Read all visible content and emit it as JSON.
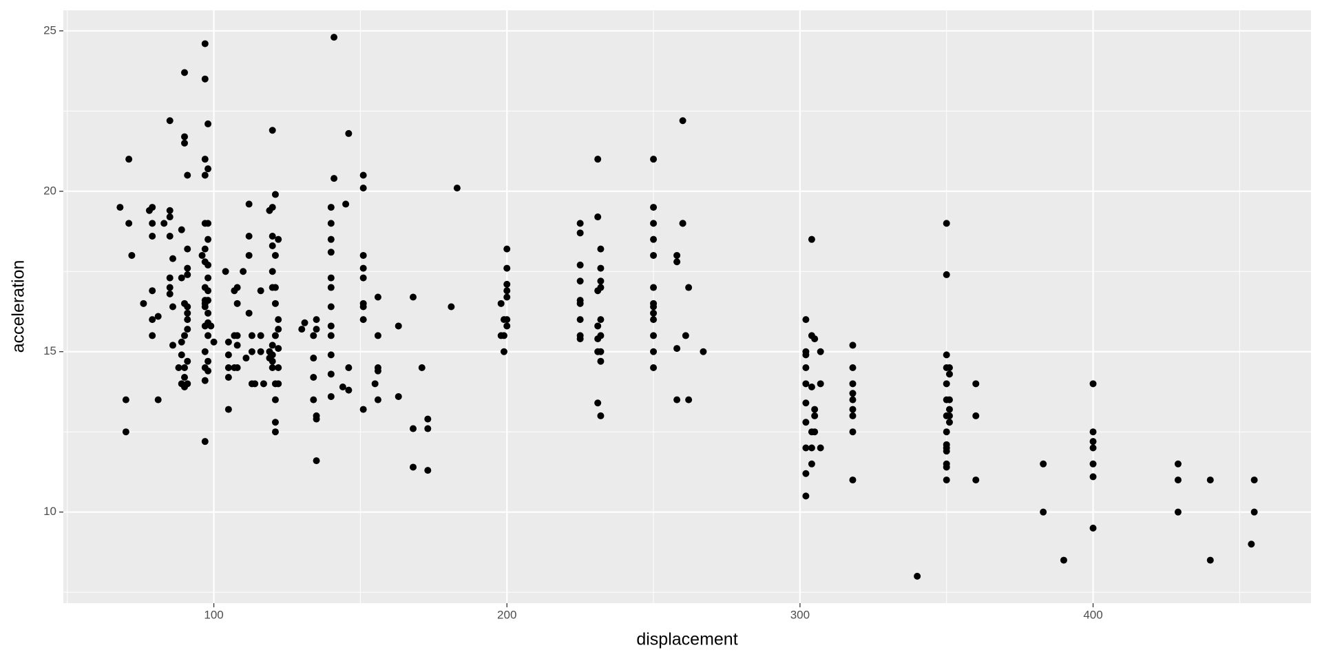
{
  "chart_data": {
    "type": "scatter",
    "x_label": "displacement",
    "y_label": "acceleration",
    "color": "#000000",
    "grid": true,
    "xlim": [
      48.65,
      474.35
    ],
    "ylim": [
      7.16,
      25.64
    ],
    "xticks": [
      100,
      200,
      300,
      400
    ],
    "yticks": [
      10,
      15,
      20,
      25
    ],
    "x": [
      68,
      70,
      70,
      71,
      71,
      72,
      76,
      78,
      79,
      79,
      79,
      79,
      79,
      79,
      81,
      81,
      83,
      85,
      85,
      85,
      85,
      85,
      85,
      85,
      86,
      86,
      86,
      88,
      89,
      89,
      89,
      89,
      89,
      90,
      90,
      90,
      90,
      90,
      90,
      90,
      90,
      91,
      91,
      91,
      91,
      91,
      91,
      91,
      91,
      91,
      91,
      96,
      97,
      97,
      97,
      97,
      97,
      97,
      97,
      97,
      97,
      97,
      97,
      97,
      97,
      97,
      97,
      97,
      98,
      98,
      98,
      98,
      98,
      98,
      98,
      98,
      98,
      98,
      98,
      98,
      98,
      99,
      100,
      104,
      105,
      105,
      105,
      105,
      105,
      107,
      107,
      107,
      108,
      108,
      108,
      108,
      108,
      110,
      111,
      112,
      112,
      112,
      112,
      113,
      113,
      113,
      114,
      116,
      116,
      116,
      117,
      119,
      119,
      119,
      120,
      120,
      120,
      120,
      120,
      120,
      120,
      120,
      120,
      120,
      121,
      121,
      121,
      121,
      121,
      121,
      121,
      121,
      121,
      122,
      122,
      122,
      122,
      122,
      122,
      130,
      131,
      134,
      134,
      134,
      134,
      135,
      135,
      135,
      135,
      135,
      140,
      140,
      140,
      140,
      140,
      140,
      140,
      140,
      140,
      140,
      140,
      140,
      141,
      141,
      144,
      145,
      146,
      146,
      146,
      151,
      151,
      151,
      151,
      151,
      151,
      151,
      151,
      151,
      155,
      156,
      156,
      156,
      156,
      156,
      163,
      163,
      168,
      168,
      168,
      171,
      173,
      173,
      173,
      181,
      183,
      198,
      198,
      199,
      199,
      199,
      200,
      200,
      200,
      200,
      200,
      200,
      200,
      225,
      225,
      225,
      225,
      225,
      225,
      225,
      225,
      225,
      231,
      231,
      231,
      231,
      231,
      231,
      231,
      232,
      232,
      232,
      232,
      232,
      232,
      232,
      232,
      232,
      250,
      250,
      250,
      250,
      250,
      250,
      250,
      250,
      250,
      250,
      250,
      250,
      250,
      258,
      258,
      258,
      258,
      260,
      260,
      260,
      261,
      262,
      262,
      267,
      302,
      302,
      302,
      302,
      302,
      302,
      302,
      302,
      302,
      302,
      304,
      304,
      304,
      304,
      304,
      304,
      305,
      305,
      305,
      305,
      307,
      307,
      307,
      318,
      318,
      318,
      318,
      318,
      318,
      318,
      318,
      318,
      340,
      350,
      350,
      350,
      350,
      350,
      350,
      350,
      350,
      350,
      350,
      350,
      350,
      350,
      350,
      351,
      351,
      351,
      351,
      351,
      351,
      360,
      360,
      360,
      383,
      383,
      390,
      400,
      400,
      400,
      400,
      400,
      400,
      400,
      429,
      429,
      429,
      440,
      440,
      454,
      455,
      455
    ],
    "values": [
      19.5,
      13.5,
      12.5,
      21,
      19,
      18,
      16.5,
      19.4,
      19.5,
      19,
      18.6,
      16.9,
      16,
      15.5,
      13.5,
      16.1,
      19,
      22.2,
      19.4,
      19.2,
      18.6,
      17.3,
      17,
      16.8,
      17.9,
      16.4,
      15.2,
      14.5,
      18.8,
      17.3,
      15.3,
      14.9,
      14,
      23.7,
      21.7,
      21.5,
      16.5,
      15.5,
      14.5,
      14.2,
      13.9,
      20.5,
      18.2,
      17.6,
      17.4,
      16.4,
      16.2,
      16,
      15.7,
      14.7,
      14,
      18,
      24.6,
      23.5,
      21,
      20.5,
      19,
      18.2,
      17.8,
      17,
      16.6,
      16.5,
      16.4,
      15.8,
      15,
      14.5,
      14.1,
      12.2,
      22.1,
      20.7,
      19,
      18.5,
      17.7,
      17.3,
      16.9,
      16.6,
      16.2,
      15.9,
      15.5,
      14.7,
      14.4,
      15.8,
      15.3,
      17.5,
      15.3,
      14.9,
      14.5,
      14.2,
      13.2,
      16.9,
      15.5,
      14.5,
      17,
      16.5,
      15.5,
      15.2,
      14.5,
      17.5,
      14.8,
      19.6,
      18.6,
      18,
      16.2,
      15.5,
      15,
      14,
      14,
      15.5,
      15,
      16.9,
      14,
      19.4,
      15,
      14.8,
      21.9,
      19.5,
      18.6,
      18.3,
      17.5,
      17,
      15.2,
      14.9,
      14.7,
      14.5,
      18,
      17,
      15.5,
      14,
      13.5,
      12.8,
      12.5,
      19.9,
      16.5,
      18.5,
      16,
      15.7,
      15.1,
      14,
      14.5,
      15.7,
      15.9,
      15.5,
      14.8,
      14.2,
      13.5,
      16,
      15.7,
      13,
      12.9,
      11.6,
      19.5,
      19,
      18.5,
      18.1,
      17.3,
      17,
      16.4,
      15.8,
      15.5,
      14.9,
      14.3,
      13.6,
      24.8,
      20.4,
      13.9,
      19.6,
      21.8,
      14.5,
      13.8,
      20.5,
      20.1,
      18,
      17.6,
      17.3,
      16.5,
      16.4,
      16,
      13.2,
      14,
      16.7,
      15.5,
      14.5,
      14.4,
      13.5,
      15.8,
      13.6,
      16.7,
      12.6,
      11.4,
      14.5,
      12.9,
      12.6,
      11.3,
      16.4,
      20.1,
      16.5,
      15.5,
      16,
      15.5,
      15,
      18.2,
      17.6,
      17.1,
      16.9,
      16.7,
      16,
      15.8,
      19,
      18.7,
      17.7,
      17.2,
      16.6,
      16.5,
      16,
      15.5,
      15.4,
      21,
      19.2,
      16.9,
      15.8,
      15.4,
      15,
      13.4,
      18.2,
      17.6,
      17.2,
      17,
      16,
      15.5,
      15,
      14.7,
      13,
      21,
      19.5,
      19,
      18.5,
      18,
      17,
      16.5,
      16.4,
      16.2,
      16,
      15.5,
      15,
      14.5,
      18,
      17.8,
      15.1,
      13.5,
      22.2,
      19,
      19,
      15.5,
      17,
      13.5,
      15,
      16,
      15,
      14.9,
      14.5,
      14,
      13.4,
      12.8,
      12,
      11.2,
      10.5,
      18.5,
      15.5,
      13.9,
      12.5,
      12,
      11.5,
      15.4,
      13.2,
      13,
      12.5,
      15,
      14,
      12,
      15.2,
      14.5,
      14,
      13.7,
      13.5,
      13.2,
      13,
      12.5,
      11,
      8,
      19,
      17.4,
      14.9,
      14.5,
      14,
      13.5,
      13,
      12.5,
      12.1,
      12,
      11.9,
      11.5,
      11.4,
      11,
      14.5,
      14.3,
      13.5,
      13.2,
      13,
      12.8,
      14,
      13,
      11,
      11.5,
      10,
      8.5,
      14,
      12.5,
      12.2,
      12,
      11.5,
      11.1,
      9.5,
      11.5,
      11,
      10,
      11,
      8.5,
      9,
      11,
      10
    ]
  }
}
